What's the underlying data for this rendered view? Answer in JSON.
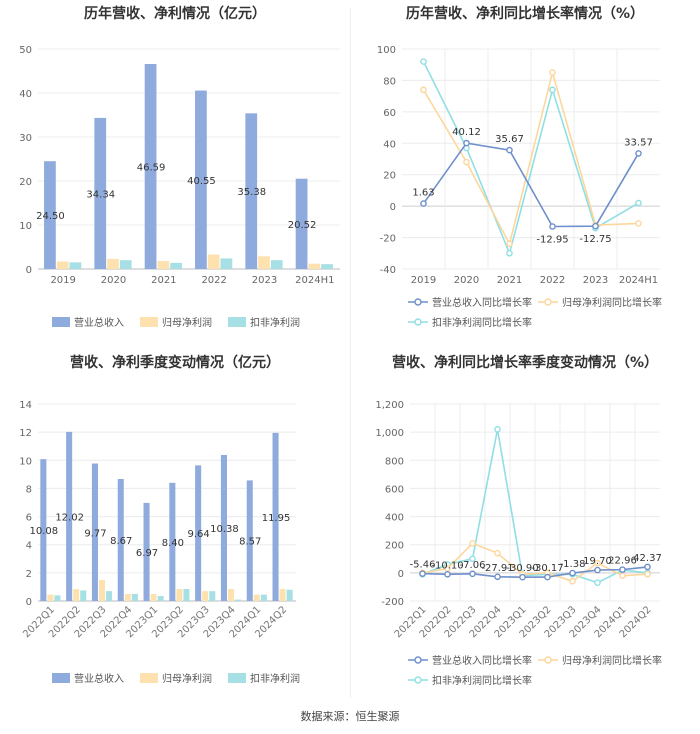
{
  "source": "数据来源：恒生聚源",
  "chart_data": [
    {
      "type": "bar",
      "title": "历年营收、净利情况（亿元）",
      "categories": [
        "2019",
        "2020",
        "2021",
        "2022",
        "2023",
        "2024H1"
      ],
      "ylim": [
        0,
        50
      ],
      "yticks": [
        0,
        10,
        20,
        30,
        40,
        50
      ],
      "grid": true,
      "legend_position": "bottom",
      "series": [
        {
          "name": "营业总收入",
          "color": "#8faadc",
          "values": [
            24.5,
            34.34,
            46.59,
            40.55,
            35.38,
            20.52
          ],
          "labels": [
            "24.50",
            "34.34",
            "46.59",
            "40.55",
            "35.38",
            "20.52"
          ]
        },
        {
          "name": "归母净利润",
          "color": "#fde2b0",
          "values": [
            1.7,
            2.3,
            1.8,
            3.3,
            2.9,
            1.2
          ]
        },
        {
          "name": "扣非净利润",
          "color": "#a6e0e4",
          "values": [
            1.5,
            2.0,
            1.4,
            2.4,
            2.0,
            1.1
          ]
        }
      ]
    },
    {
      "type": "line",
      "title": "历年营收、净利同比增长率情况（%）",
      "categories": [
        "2019",
        "2020",
        "2021",
        "2022",
        "2023",
        "2024H1"
      ],
      "ylim": [
        -40,
        100
      ],
      "yticks": [
        -40,
        -20,
        0,
        20,
        40,
        60,
        80,
        100
      ],
      "grid": true,
      "legend_position": "bottom",
      "series": [
        {
          "name": "营业总收入同比增长率",
          "color": "#6e8fcb",
          "values": [
            1.63,
            40.12,
            35.67,
            -12.95,
            -12.75,
            33.57
          ],
          "labels": [
            "1.63",
            "40.12",
            "35.67",
            "-12.95",
            "-12.75",
            "33.57"
          ]
        },
        {
          "name": "归母净利润同比增长率",
          "color": "#fdd69c",
          "values": [
            74,
            28,
            -24,
            85,
            -12,
            -11
          ]
        },
        {
          "name": "扣非净利润同比增长率",
          "color": "#8fdfe4",
          "values": [
            92,
            37,
            -30,
            74,
            -14,
            2
          ]
        }
      ]
    },
    {
      "type": "bar",
      "title": "营收、净利季度变动情况（亿元）",
      "categories": [
        "2022Q1",
        "2022Q2",
        "2022Q3",
        "2022Q4",
        "2023Q1",
        "2023Q2",
        "2023Q3",
        "2023Q4",
        "2024Q1",
        "2024Q2"
      ],
      "ylim": [
        0,
        14
      ],
      "yticks": [
        0,
        2,
        4,
        6,
        8,
        10,
        12,
        14
      ],
      "grid": true,
      "legend_position": "bottom",
      "series": [
        {
          "name": "营业总收入",
          "color": "#8faadc",
          "values": [
            10.08,
            12.02,
            9.77,
            8.67,
            6.97,
            8.4,
            9.64,
            10.38,
            8.57,
            11.95
          ],
          "labels": [
            "10.08",
            "12.02",
            "9.77",
            "8.67",
            "6.97",
            "8.40",
            "9.64",
            "10.38",
            "8.57",
            "11.95"
          ]
        },
        {
          "name": "归母净利润",
          "color": "#fde2b0",
          "values": [
            0.45,
            0.85,
            1.5,
            0.5,
            0.5,
            0.85,
            0.7,
            0.85,
            0.45,
            0.85
          ]
        },
        {
          "name": "扣非净利润",
          "color": "#a6e0e4",
          "values": [
            0.4,
            0.75,
            0.7,
            0.5,
            0.35,
            0.85,
            0.7,
            0.1,
            0.45,
            0.8
          ]
        }
      ]
    },
    {
      "type": "line",
      "title": "营收、净利同比增长率季度变动情况（%）",
      "categories": [
        "2022Q1",
        "2022Q2",
        "2022Q3",
        "2022Q4",
        "2023Q1",
        "2023Q2",
        "2023Q3",
        "2023Q4",
        "2024Q1",
        "2024Q2"
      ],
      "ylim": [
        -200,
        1200
      ],
      "yticks": [
        -200,
        0,
        200,
        400,
        600,
        800,
        1000,
        1200
      ],
      "ytick_labels": [
        "-200",
        "0",
        "200",
        "400",
        "600",
        "800",
        "1,000",
        "1,200"
      ],
      "grid": true,
      "legend_position": "bottom",
      "series": [
        {
          "name": "营业总收入同比增长率",
          "color": "#6e8fcb",
          "values": [
            -5.46,
            -10.1,
            -7.06,
            -27.91,
            -30.9,
            -30.17,
            -1.38,
            19.7,
            22.96,
            42.37
          ],
          "labels": [
            "-5.46",
            "-10.10",
            "-7.06",
            "-27.91",
            "-30.90",
            "-30.17",
            "-1.38",
            "19.70",
            "22.96",
            "42.37"
          ]
        },
        {
          "name": "归母净利润同比增长率",
          "color": "#fdd69c",
          "values": [
            0,
            30,
            210,
            140,
            -10,
            0,
            -60,
            70,
            -20,
            -10
          ]
        },
        {
          "name": "扣非净利润同比增长率",
          "color": "#8fdfe4",
          "values": [
            -10,
            60,
            100,
            1020,
            -20,
            -10,
            -10,
            -70,
            20,
            0
          ]
        }
      ]
    }
  ]
}
